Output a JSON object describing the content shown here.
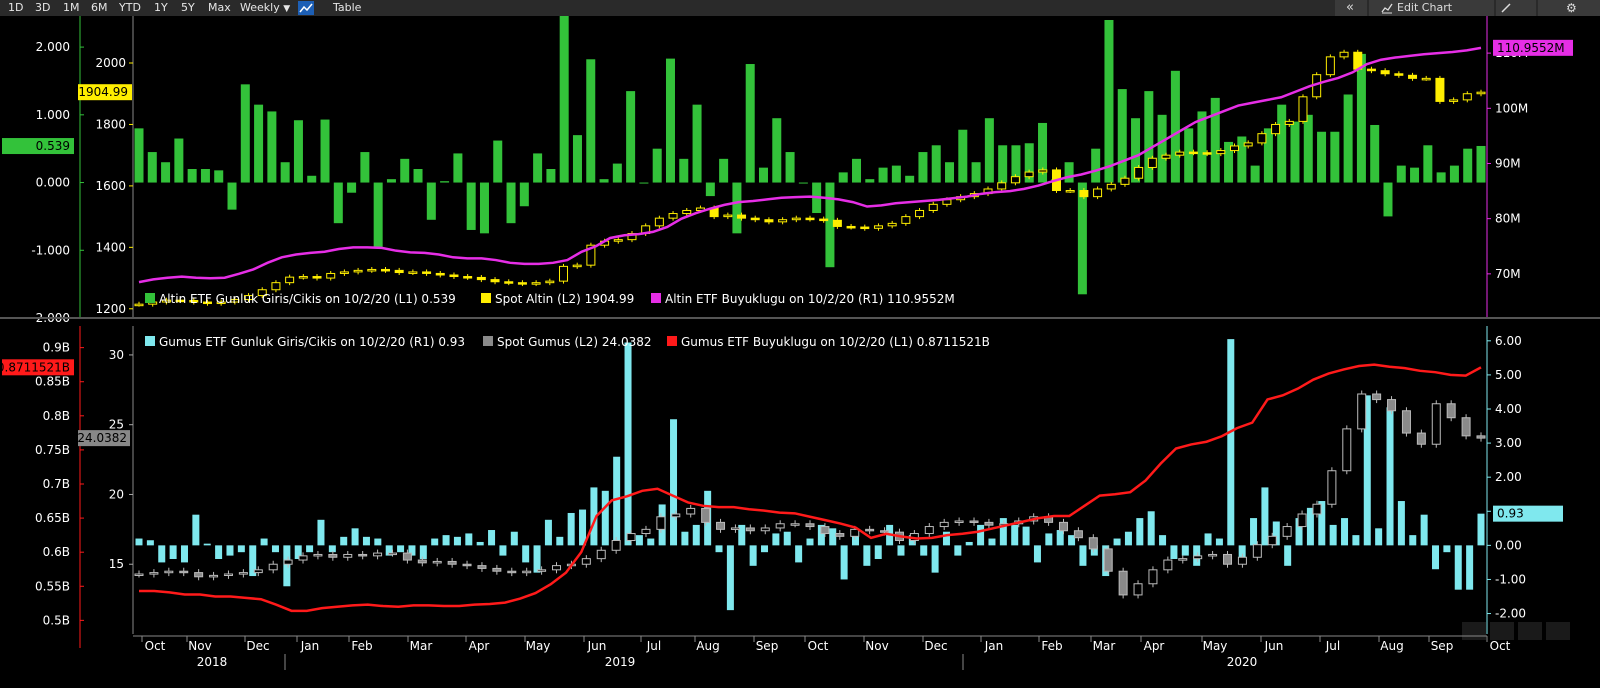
{
  "toolbar": {
    "ranges": [
      "1D",
      "3D",
      "1M",
      "6M",
      "YTD",
      "1Y",
      "5Y",
      "Max"
    ],
    "period": "Weekly",
    "period_arrow": "▼",
    "chart_icon": "line-chart-icon",
    "table_label": "Table",
    "collapse_icon": "«",
    "edit_chart_label": "Edit Chart",
    "edit_icon": "edit-icon",
    "settings_icon": "⚙"
  },
  "colors": {
    "green": "#33c23a",
    "yellow": "#ffee00",
    "magenta": "#e62ee6",
    "cyan": "#7fe8ee",
    "gray": "#8a8a8a",
    "red": "#ff1a1a"
  },
  "chart_data": [
    {
      "type": "bar",
      "title": "",
      "legend": [
        {
          "label": "Altin ETF Gunluk Giris/Cikis on 10/2/20 (L1) 0.539",
          "color": "#33c23a"
        },
        {
          "label": "Spot Altin (L2) 1904.99",
          "color": "#ffee00"
        },
        {
          "label": "Altin ETF Buyuklugu on 10/2/20 (R1) 110.9552M",
          "color": "#e62ee6"
        }
      ],
      "left_axis_1": {
        "ticks": [
          "2.000",
          "1.000",
          "0.000",
          "-1.000",
          "-2.000"
        ],
        "ylim": [
          -2.0,
          2.4
        ],
        "last_value": "0.539"
      },
      "left_axis_2": {
        "ticks": [
          "2000",
          "1800",
          "1600",
          "1400",
          "1200"
        ],
        "ylim": [
          1170,
          2140
        ],
        "last_value": "1904.99"
      },
      "right_axis": {
        "ticks": [
          "110M",
          "100M",
          "90M",
          "80M",
          "70M"
        ],
        "ylim": [
          62,
          116
        ],
        "last_value": "110.9552M"
      },
      "series": [
        {
          "name": "Altin ETF Gunluk Giris/Cikis",
          "axis": "L1",
          "values": [
            0.8,
            0.45,
            0.3,
            0.65,
            0.2,
            0.2,
            0.18,
            -0.4,
            1.45,
            1.15,
            1.05,
            0.3,
            0.92,
            0.1,
            0.93,
            -0.6,
            -0.15,
            0.45,
            -0.95,
            0.05,
            0.35,
            0.2,
            -0.55,
            0.02,
            0.43,
            -0.7,
            -0.75,
            0.62,
            -0.6,
            -0.35,
            0.43,
            0.2,
            2.65,
            0.7,
            1.82,
            0.05,
            0.28,
            1.35,
            0.0,
            0.5,
            1.83,
            0.35,
            1.15,
            -0.2,
            0.35,
            -0.75,
            1.75,
            0.22,
            0.95,
            0.45,
            0.0,
            -0.45,
            -1.25,
            0.15,
            0.35,
            0.05,
            0.22,
            0.25,
            0.1,
            0.45,
            0.55,
            0.3,
            0.78,
            0.3,
            0.95,
            0.55,
            0.55,
            0.58,
            0.88,
            0.05,
            0.3,
            -1.65,
            0.5,
            2.4,
            1.38,
            0.95,
            1.35,
            1.0,
            1.65,
            0.8,
            1.05,
            1.25,
            0.6,
            0.68,
            0.25,
            0.8,
            1.15,
            0.9,
            1.0,
            0.75,
            0.75,
            1.3,
            1.9,
            0.85,
            -0.5,
            0.25,
            0.22,
            0.55,
            0.15,
            0.25,
            0.5,
            0.54
          ]
        },
        {
          "name": "Spot Altin",
          "axis": "L2",
          "values": [
            1215,
            1222,
            1228,
            1227,
            1222,
            1218,
            1222,
            1230,
            1243,
            1262,
            1285,
            1303,
            1305,
            1300,
            1315,
            1320,
            1325,
            1328,
            1325,
            1318,
            1320,
            1315,
            1310,
            1305,
            1302,
            1295,
            1288,
            1285,
            1282,
            1285,
            1290,
            1338,
            1342,
            1407,
            1420,
            1425,
            1445,
            1470,
            1495,
            1510,
            1520,
            1528,
            1500,
            1505,
            1495,
            1490,
            1483,
            1490,
            1495,
            1492,
            1488,
            1468,
            1466,
            1462,
            1470,
            1478,
            1500,
            1520,
            1540,
            1555,
            1565,
            1575,
            1590,
            1610,
            1630,
            1645,
            1652,
            1585,
            1585,
            1565,
            1590,
            1605,
            1625,
            1660,
            1690,
            1700,
            1710,
            1708,
            1705,
            1715,
            1730,
            1740,
            1770,
            1800,
            1810,
            1890,
            1962,
            2020,
            2035,
            1980,
            1975,
            1965,
            1960,
            1950,
            1950,
            1875,
            1880,
            1900,
            1905
          ]
        },
        {
          "name": "Altin ETF Buyuklugu",
          "axis": "R1",
          "values": [
            68.5,
            69,
            69.3,
            69.5,
            69.3,
            69.2,
            69.3,
            70,
            70.8,
            72,
            73,
            73.5,
            73.8,
            74,
            74.5,
            74.8,
            74.8,
            74.7,
            74.2,
            73.9,
            73.8,
            73.5,
            73,
            72.8,
            72.8,
            72.5,
            72,
            71.8,
            71.8,
            72,
            72.5,
            74,
            75,
            76.5,
            77,
            77.2,
            77.6,
            78.5,
            80,
            81,
            81.8,
            82.5,
            83,
            83.2,
            83.5,
            83.8,
            83.9,
            84,
            83.8,
            83.5,
            83,
            82.2,
            82.4,
            82.8,
            83,
            83.2,
            83.4,
            83.7,
            84,
            84.5,
            84.8,
            85,
            85.4,
            86,
            86.8,
            87.5,
            88,
            88.7,
            89.5,
            90.5,
            91.5,
            93,
            94.5,
            96,
            97.5,
            98.5,
            99.5,
            100.5,
            101,
            101.5,
            102,
            103,
            104,
            104.8,
            105.5,
            106.5,
            108,
            108.8,
            109.2,
            109.5,
            109.8,
            110,
            110.2,
            110.5,
            110.95
          ]
        }
      ]
    },
    {
      "type": "bar",
      "title": "",
      "legend": [
        {
          "label": "Gumus ETF Gunluk Giris/Cikis on 10/2/20 (R1) 0.93",
          "color": "#7fe8ee"
        },
        {
          "label": "Spot Gumus (L2) 24.0382",
          "color": "#8a8a8a"
        },
        {
          "label": "Gumus ETF Buyuklugu on 10/2/20 (L1) 0.8711521B",
          "color": "#ff1a1a"
        }
      ],
      "left_axis_1": {
        "ticks": [
          "0.9B",
          "0.85B",
          "0.8B",
          "0.75B",
          "0.7B",
          "0.65B",
          "0.6B",
          "0.55B",
          "0.5B"
        ],
        "ylim": [
          0.48,
          0.92
        ],
        "last_value": "0.8711521B"
      },
      "left_axis_2": {
        "ticks": [
          "30",
          "25",
          "20",
          "15"
        ],
        "ylim": [
          10,
          31.5
        ],
        "last_value": "24.0382"
      },
      "right_axis": {
        "ticks": [
          "6.00",
          "5.00",
          "4.00",
          "3.00",
          "2.00",
          "1.00",
          "0.00",
          "-1.00",
          "-2.00"
        ],
        "ylim": [
          -2.6,
          6.2
        ],
        "last_value": "0.93"
      },
      "series": [
        {
          "name": "Gumus ETF Gunluk Giris/Cikis",
          "axis": "R1",
          "values": [
            0.2,
            0.15,
            -0.5,
            -0.4,
            -0.5,
            0.9,
            0.05,
            -0.4,
            -0.3,
            -0.2,
            -0.9,
            0.2,
            -0.2,
            -1.2,
            -0.4,
            -0.2,
            0.75,
            -0.2,
            0.25,
            0.5,
            0.25,
            0.2,
            -0.3,
            -0.2,
            -0.3,
            -0.4,
            0.2,
            0.3,
            0.25,
            0.35,
            0.1,
            0.45,
            -0.3,
            0.4,
            -0.5,
            -0.8,
            0.75,
            0.25,
            0.95,
            1.05,
            1.7,
            1.6,
            2.6,
            5.95,
            0.3,
            0.2,
            1.2,
            3.7,
            0.4,
            0.6,
            1.6,
            -0.2,
            -1.9,
            0.6,
            -0.6,
            -0.2,
            0.35,
            0.4,
            -0.5,
            0.2,
            0.6,
            0.5,
            -1.0,
            0.3,
            -0.6,
            -0.4,
            0.6,
            -0.3,
            0.3,
            -0.3,
            -0.8,
            0.4,
            -0.3,
            0.1,
            0.6,
            0.2,
            0.8,
            0.6,
            0.55,
            -0.5,
            0.35,
            0.45,
            0.3,
            -0.6,
            -0.3,
            -0.9,
            0.2,
            0.4,
            0.8,
            1.0,
            0.3,
            -0.4,
            -0.3,
            -0.6,
            0.35,
            0.2,
            6.05,
            -0.5,
            0.8,
            1.7,
            0.7,
            -0.6,
            0.8,
            1.1,
            1.3,
            0.6,
            0.8,
            0.3,
            4.4,
            0.5,
            4.05,
            1.3,
            0.3,
            0.9,
            -0.7,
            -0.2,
            -1.3,
            -1.3,
            0.93
          ]
        },
        {
          "name": "Spot Gumus",
          "axis": "L2",
          "values": [
            14.3,
            14.4,
            14.5,
            14.4,
            14.1,
            14.2,
            14.3,
            14.4,
            14.6,
            15.0,
            15.3,
            15.6,
            15.7,
            15.5,
            15.7,
            15.6,
            15.8,
            15.8,
            15.3,
            15.1,
            15.2,
            15.0,
            14.9,
            14.7,
            14.5,
            14.4,
            14.5,
            14.6,
            14.9,
            15.0,
            15.4,
            16.0,
            16.7,
            17.2,
            17.5,
            18.4,
            18.6,
            19.0,
            18.0,
            17.5,
            17.6,
            17.4,
            17.6,
            17.9,
            17.9,
            17.7,
            17.2,
            17.0,
            17.5,
            17.4,
            17.3,
            16.7,
            17.2,
            17.7,
            18.0,
            18.1,
            18.0,
            17.8,
            17.9,
            18.1,
            18.4,
            18.0,
            17.4,
            16.9,
            16.1,
            14.5,
            12.8,
            13.6,
            14.6,
            15.3,
            15.4,
            15.6,
            15.7,
            15.0,
            15.5,
            16.4,
            17.0,
            17.7,
            18.6,
            19.3,
            21.7,
            24.7,
            27.2,
            26.8,
            26.0,
            24.4,
            23.6,
            26.5,
            25.5,
            24.2,
            24.04
          ]
        },
        {
          "name": "Gumus ETF Buyuklugu",
          "axis": "L1",
          "values": [
            0.543,
            0.543,
            0.541,
            0.538,
            0.538,
            0.535,
            0.535,
            0.533,
            0.531,
            0.523,
            0.514,
            0.514,
            0.518,
            0.52,
            0.522,
            0.523,
            0.521,
            0.52,
            0.522,
            0.522,
            0.521,
            0.521,
            0.523,
            0.524,
            0.526,
            0.532,
            0.54,
            0.553,
            0.57,
            0.6,
            0.653,
            0.676,
            0.682,
            0.69,
            0.693,
            0.683,
            0.673,
            0.668,
            0.666,
            0.666,
            0.663,
            0.661,
            0.658,
            0.657,
            0.652,
            0.647,
            0.642,
            0.636,
            0.621,
            0.627,
            0.623,
            0.62,
            0.621,
            0.625,
            0.627,
            0.63,
            0.635,
            0.64,
            0.645,
            0.65,
            0.653,
            0.653,
            0.668,
            0.683,
            0.685,
            0.688,
            0.705,
            0.73,
            0.752,
            0.758,
            0.762,
            0.77,
            0.782,
            0.79,
            0.824,
            0.83,
            0.84,
            0.853,
            0.862,
            0.868,
            0.873,
            0.875,
            0.872,
            0.87,
            0.866,
            0.864,
            0.86,
            0.859,
            0.871
          ]
        }
      ]
    }
  ],
  "time_axis": {
    "months": [
      "Oct",
      "Nov",
      "Dec",
      "Jan",
      "Feb",
      "Mar",
      "Apr",
      "May",
      "Jun",
      "Jul",
      "Aug",
      "Sep",
      "Oct",
      "Nov",
      "Dec",
      "Jan",
      "Feb",
      "Mar",
      "Apr",
      "May",
      "Jun",
      "Jul",
      "Aug",
      "Sep",
      "Oct"
    ],
    "years": [
      "2018",
      "2019",
      "2020"
    ]
  },
  "zoom_icons": [
    "crosshair-icon",
    "draw-line-icon",
    "list-icon",
    "zoom-icon"
  ]
}
